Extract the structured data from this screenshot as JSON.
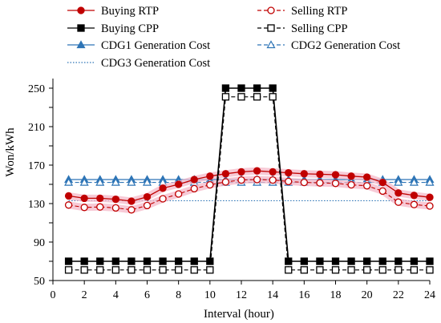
{
  "chart_data": {
    "type": "line",
    "xlabel": "Interval (hour)",
    "ylabel": "Won/kWh",
    "xlim": [
      0,
      24
    ],
    "ylim": [
      50,
      260
    ],
    "xticks": [
      0,
      2,
      4,
      6,
      8,
      10,
      12,
      14,
      16,
      18,
      20,
      22,
      24
    ],
    "yticks": [
      50,
      70,
      90,
      110,
      130,
      150,
      170,
      190,
      210,
      230,
      250
    ],
    "ytick_labels": [
      "50",
      "",
      "90",
      "",
      "130",
      "",
      "170",
      "",
      "210",
      "",
      "250"
    ],
    "grid": false,
    "legend_position": "top",
    "x": [
      1,
      2,
      3,
      4,
      5,
      6,
      7,
      8,
      9,
      10,
      11,
      12,
      13,
      14,
      15,
      16,
      17,
      18,
      19,
      20,
      21,
      22,
      23,
      24
    ],
    "series": [
      {
        "name": "Buying RTP",
        "color": "#c00000",
        "marker": "circle-filled",
        "line": "solid",
        "highlight": "#f4b8c8",
        "values": [
          138,
          135.5,
          135.5,
          134.5,
          132.5,
          137,
          146,
          150,
          155,
          158.5,
          161,
          163,
          164,
          163,
          162,
          161,
          160.5,
          160,
          158.5,
          157.5,
          152,
          141,
          138.5,
          136.5
        ]
      },
      {
        "name": "Selling RTP",
        "color": "#c00000",
        "marker": "circle-open",
        "line": "dashed",
        "highlight": "#f4b8c8",
        "values": [
          128.5,
          126,
          126.5,
          125.5,
          123.5,
          128,
          135,
          140,
          145.5,
          149.5,
          152.5,
          154.5,
          155,
          154.5,
          153,
          152,
          151.5,
          151,
          149.5,
          148.5,
          143,
          131.5,
          129,
          127.5
        ]
      },
      {
        "name": "Buying CPP",
        "color": "#000000",
        "marker": "square-filled",
        "line": "solid",
        "values": [
          70,
          70,
          70,
          70,
          70,
          70,
          70,
          70,
          70,
          70,
          250,
          250,
          250,
          250,
          70,
          70,
          70,
          70,
          70,
          70,
          70,
          70,
          70,
          70
        ]
      },
      {
        "name": "Selling CPP",
        "color": "#000000",
        "marker": "square-open",
        "line": "dashed",
        "values": [
          61,
          61,
          61,
          61,
          61,
          61,
          61,
          61,
          61,
          61,
          241,
          241,
          241,
          241,
          61,
          61,
          61,
          61,
          61,
          61,
          61,
          61,
          61,
          61
        ]
      },
      {
        "name": "CDG1 Generation Cost",
        "color": "#2e75b6",
        "marker": "triangle-filled",
        "line": "solid",
        "values": [
          155,
          155,
          155,
          155,
          155,
          155,
          155,
          155,
          155,
          155,
          155,
          155,
          155,
          155,
          155,
          155,
          155,
          155,
          155,
          155,
          155,
          155,
          155,
          155
        ]
      },
      {
        "name": "CDG2 Generation Cost",
        "color": "#2e75b6",
        "marker": "triangle-open",
        "line": "dashed",
        "values": [
          152,
          152,
          152,
          152,
          152,
          152,
          152,
          152,
          152,
          152,
          152,
          152,
          152,
          152,
          152,
          152,
          152,
          152,
          152,
          152,
          152,
          152,
          152,
          152
        ]
      },
      {
        "name": "CDG3 Generation Cost",
        "color": "#2e75b6",
        "marker": "none",
        "line": "dotted",
        "values": [
          133,
          133,
          133,
          133,
          133,
          133,
          133,
          133,
          133,
          133,
          133,
          133,
          133,
          133,
          133,
          133,
          133,
          133,
          133,
          133,
          133,
          133,
          133,
          133
        ]
      }
    ]
  }
}
